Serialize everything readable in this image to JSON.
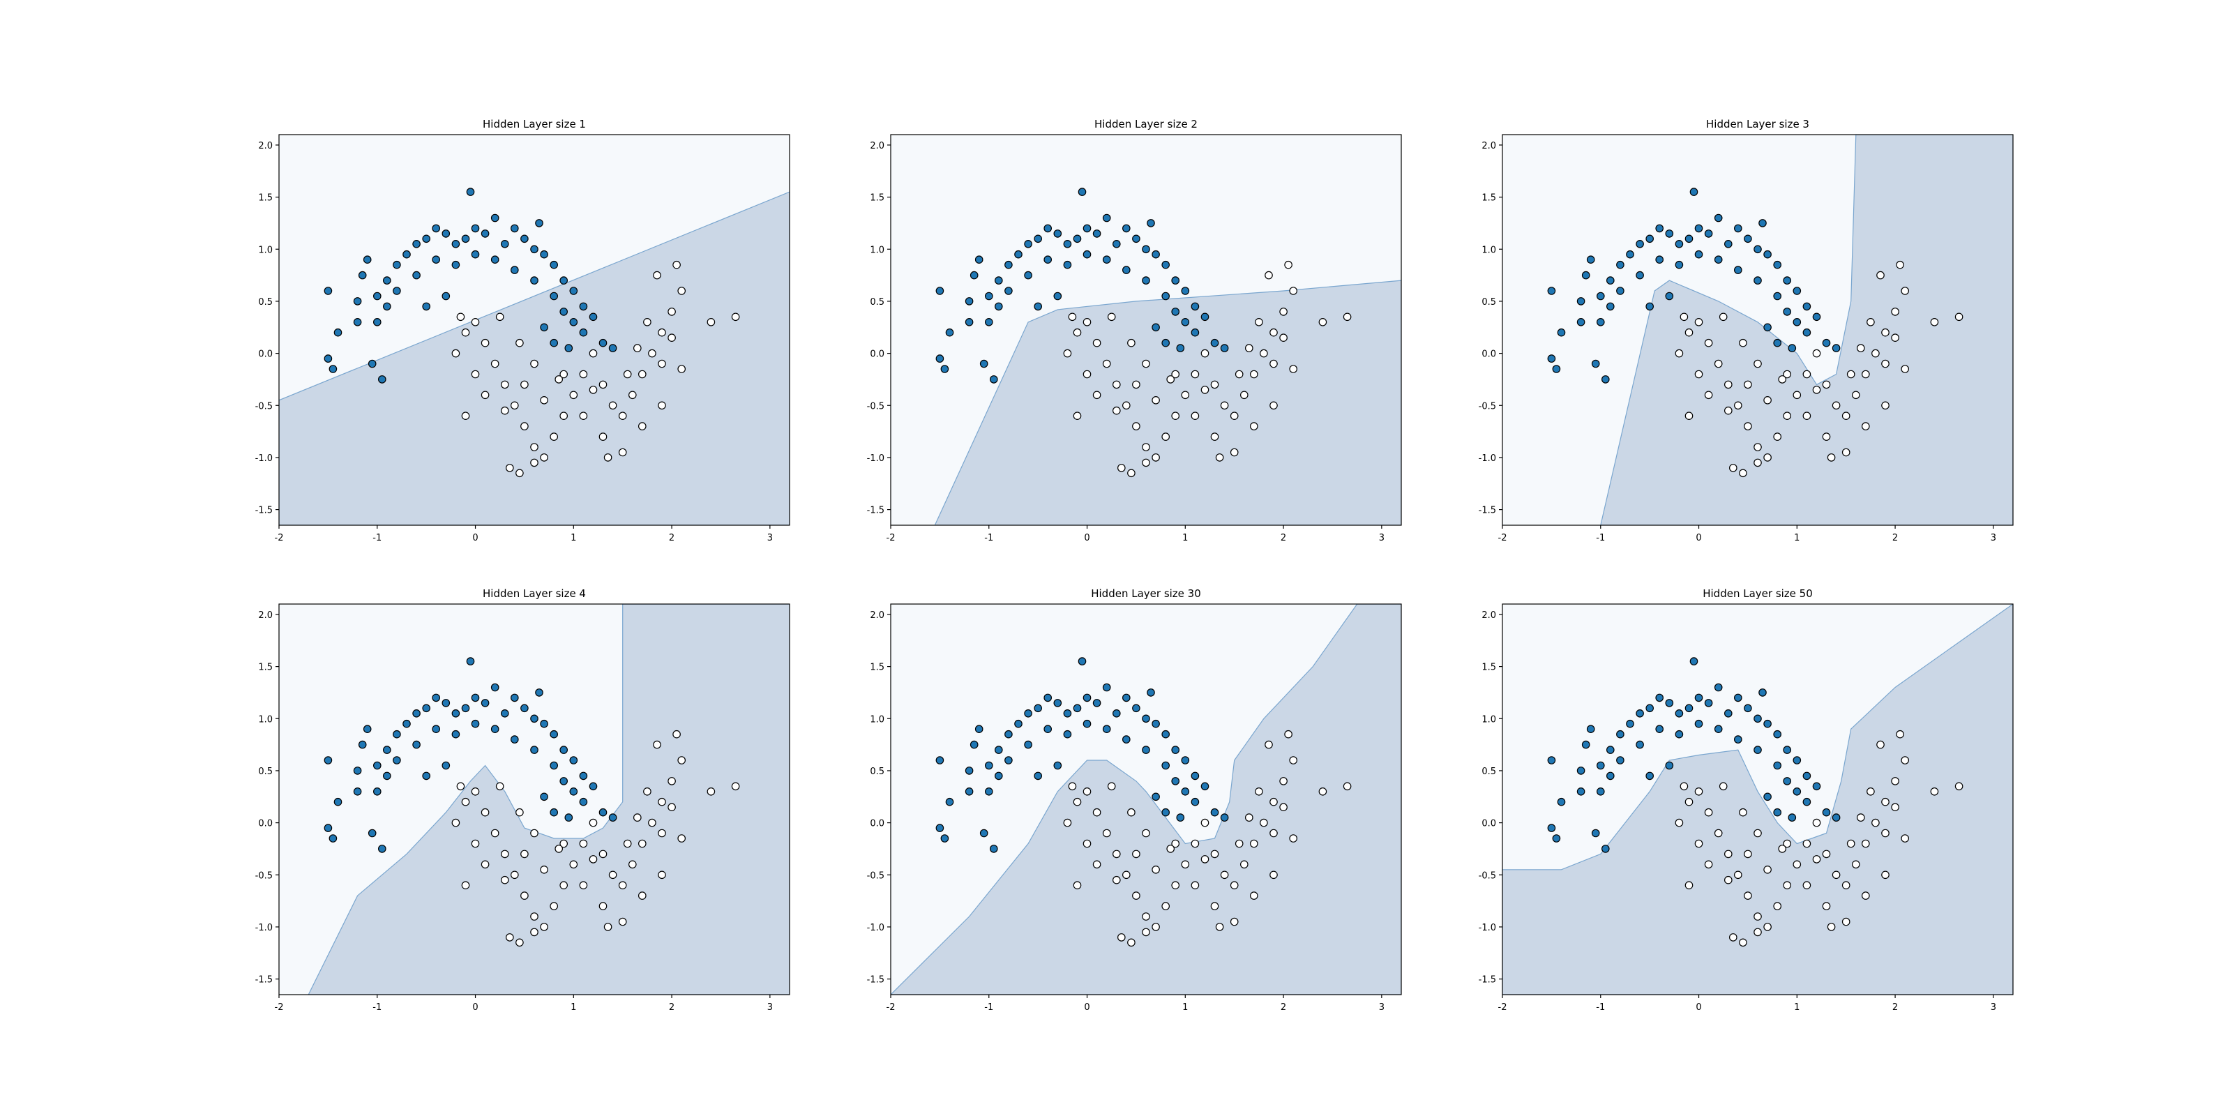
{
  "chart_data": [
    {
      "type": "scatter",
      "title": "Hidden Layer size 1",
      "xlim": [
        -2.0,
        3.2
      ],
      "ylim": [
        -1.65,
        2.1
      ],
      "xticks": [
        -2,
        -1,
        0,
        1,
        2,
        3
      ],
      "yticks": [
        -1.5,
        -1.0,
        -0.5,
        0.0,
        0.5,
        1.0,
        1.5,
        2.0
      ],
      "ytick_labels": [
        "-1.5",
        "-1.0",
        "-0.5",
        "0.0",
        "0.5",
        "1.0",
        "1.5",
        "2.0"
      ],
      "decision_region": [
        [
          -2.0,
          -1.65
        ],
        [
          -2.0,
          -0.45
        ],
        [
          3.2,
          1.55
        ],
        [
          3.2,
          -1.65
        ]
      ],
      "series": [
        {
          "color": "#1f77b4",
          "label_class": 0,
          "points": [
            [
              -1.5,
              0.6
            ],
            [
              -1.4,
              0.2
            ],
            [
              -1.5,
              -0.05
            ],
            [
              -1.45,
              -0.15
            ],
            [
              -1.2,
              0.5
            ],
            [
              -1.15,
              0.75
            ],
            [
              -1.1,
              0.9
            ],
            [
              -1.0,
              0.55
            ],
            [
              -0.9,
              0.7
            ],
            [
              -0.8,
              0.85
            ],
            [
              -0.7,
              0.95
            ],
            [
              -0.6,
              1.05
            ],
            [
              -0.5,
              1.1
            ],
            [
              -0.4,
              1.2
            ],
            [
              -0.3,
              1.15
            ],
            [
              -0.2,
              1.05
            ],
            [
              -0.1,
              1.1
            ],
            [
              0.0,
              1.2
            ],
            [
              0.1,
              1.15
            ],
            [
              0.2,
              1.3
            ],
            [
              0.3,
              1.05
            ],
            [
              0.4,
              1.2
            ],
            [
              0.5,
              1.1
            ],
            [
              0.6,
              1.0
            ],
            [
              0.7,
              0.95
            ],
            [
              0.8,
              0.85
            ],
            [
              0.9,
              0.7
            ],
            [
              1.0,
              0.6
            ],
            [
              1.1,
              0.45
            ],
            [
              1.2,
              0.35
            ],
            [
              -1.2,
              0.3
            ],
            [
              -1.0,
              0.3
            ],
            [
              -0.9,
              0.45
            ],
            [
              -0.8,
              0.6
            ],
            [
              -0.6,
              0.75
            ],
            [
              -0.4,
              0.9
            ],
            [
              -0.2,
              0.85
            ],
            [
              0.0,
              0.95
            ],
            [
              0.2,
              0.9
            ],
            [
              0.4,
              0.8
            ],
            [
              0.6,
              0.7
            ],
            [
              0.8,
              0.55
            ],
            [
              0.9,
              0.4
            ],
            [
              1.0,
              0.3
            ],
            [
              1.1,
              0.2
            ],
            [
              1.3,
              0.1
            ],
            [
              1.4,
              0.05
            ],
            [
              -0.05,
              1.55
            ],
            [
              0.65,
              1.25
            ],
            [
              -0.95,
              -0.25
            ],
            [
              -1.05,
              -0.1
            ],
            [
              0.8,
              0.1
            ],
            [
              0.7,
              0.25
            ],
            [
              0.95,
              0.05
            ],
            [
              -0.3,
              0.55
            ],
            [
              -0.5,
              0.45
            ]
          ]
        },
        {
          "color": "#ffffff",
          "label_class": 1,
          "points": [
            [
              0.0,
              0.3
            ],
            [
              0.1,
              0.1
            ],
            [
              0.2,
              -0.1
            ],
            [
              0.3,
              -0.3
            ],
            [
              0.4,
              -0.5
            ],
            [
              0.5,
              -0.7
            ],
            [
              0.6,
              -0.9
            ],
            [
              0.7,
              -1.0
            ],
            [
              0.8,
              -0.8
            ],
            [
              0.9,
              -0.6
            ],
            [
              1.0,
              -0.4
            ],
            [
              1.1,
              -0.2
            ],
            [
              1.2,
              0.0
            ],
            [
              1.3,
              -0.3
            ],
            [
              1.4,
              -0.5
            ],
            [
              1.5,
              -0.6
            ],
            [
              1.6,
              -0.4
            ],
            [
              1.7,
              -0.2
            ],
            [
              1.8,
              0.0
            ],
            [
              1.9,
              0.2
            ],
            [
              2.0,
              0.4
            ],
            [
              2.1,
              0.6
            ],
            [
              1.85,
              0.75
            ],
            [
              2.05,
              0.85
            ],
            [
              2.4,
              0.3
            ],
            [
              2.65,
              0.35
            ],
            [
              -0.1,
              0.2
            ],
            [
              -0.15,
              0.35
            ],
            [
              -0.2,
              0.0
            ],
            [
              0.0,
              -0.2
            ],
            [
              0.1,
              -0.4
            ],
            [
              0.3,
              -0.55
            ],
            [
              0.5,
              -0.3
            ],
            [
              0.7,
              -0.45
            ],
            [
              0.9,
              -0.2
            ],
            [
              1.1,
              -0.6
            ],
            [
              1.3,
              -0.8
            ],
            [
              1.5,
              -0.95
            ],
            [
              1.7,
              -0.7
            ],
            [
              1.9,
              -0.5
            ],
            [
              2.1,
              -0.15
            ],
            [
              -0.1,
              -0.6
            ],
            [
              0.35,
              -1.1
            ],
            [
              0.45,
              -1.15
            ],
            [
              0.6,
              -1.05
            ],
            [
              1.35,
              -1.0
            ],
            [
              1.55,
              -0.2
            ],
            [
              1.65,
              0.05
            ],
            [
              1.75,
              0.3
            ],
            [
              1.9,
              -0.1
            ],
            [
              2.0,
              0.15
            ],
            [
              0.25,
              0.35
            ],
            [
              0.45,
              0.1
            ],
            [
              0.6,
              -0.1
            ],
            [
              0.85,
              -0.25
            ],
            [
              1.2,
              -0.35
            ]
          ]
        }
      ]
    },
    {
      "type": "scatter",
      "title": "Hidden Layer size 2",
      "xlim": [
        -2.0,
        3.2
      ],
      "ylim": [
        -1.65,
        2.1
      ],
      "xticks": [
        -2,
        -1,
        0,
        1,
        2,
        3
      ],
      "yticks": [
        -1.5,
        -1.0,
        -0.5,
        0.0,
        0.5,
        1.0,
        1.5,
        2.0
      ],
      "ytick_labels": [
        "-1.5",
        "-1.0",
        "-0.5",
        "0.0",
        "0.5",
        "1.0",
        "1.5",
        "2.0"
      ],
      "decision_region": [
        [
          -1.55,
          -1.65
        ],
        [
          -0.6,
          0.3
        ],
        [
          -0.3,
          0.42
        ],
        [
          0.5,
          0.5
        ],
        [
          2.0,
          0.6
        ],
        [
          3.2,
          0.7
        ],
        [
          3.2,
          -1.65
        ]
      ],
      "series": "same_as_panel_1"
    },
    {
      "type": "scatter",
      "title": "Hidden Layer size 3",
      "xlim": [
        -2.0,
        3.2
      ],
      "ylim": [
        -1.65,
        2.1
      ],
      "xticks": [
        -2,
        -1,
        0,
        1,
        2,
        3
      ],
      "yticks": [
        -1.5,
        -1.0,
        -0.5,
        0.0,
        0.5,
        1.0,
        1.5,
        2.0
      ],
      "ytick_labels": [
        "-1.5",
        "-1.0",
        "-0.5",
        "0.0",
        "0.5",
        "1.0",
        "1.5",
        "2.0"
      ],
      "decision_region": [
        [
          -1.0,
          -1.65
        ],
        [
          -0.45,
          0.6
        ],
        [
          -0.3,
          0.7
        ],
        [
          0.2,
          0.5
        ],
        [
          0.6,
          0.3
        ],
        [
          1.0,
          0.0
        ],
        [
          1.2,
          -0.3
        ],
        [
          1.4,
          -0.2
        ],
        [
          1.55,
          0.5
        ],
        [
          1.6,
          2.1
        ],
        [
          3.2,
          2.1
        ],
        [
          3.2,
          -1.65
        ]
      ],
      "series": "same_as_panel_1"
    },
    {
      "type": "scatter",
      "title": "Hidden Layer size 4",
      "xlim": [
        -2.0,
        3.2
      ],
      "ylim": [
        -1.65,
        2.1
      ],
      "xticks": [
        -2,
        -1,
        0,
        1,
        2,
        3
      ],
      "yticks": [
        -1.5,
        -1.0,
        -0.5,
        0.0,
        0.5,
        1.0,
        1.5,
        2.0
      ],
      "ytick_labels": [
        "-1.5",
        "-1.0",
        "-0.5",
        "0.0",
        "0.5",
        "1.0",
        "1.5",
        "2.0"
      ],
      "decision_region": [
        [
          -1.7,
          -1.65
        ],
        [
          -1.2,
          -0.7
        ],
        [
          -0.7,
          -0.3
        ],
        [
          -0.3,
          0.1
        ],
        [
          -0.05,
          0.4
        ],
        [
          0.1,
          0.55
        ],
        [
          0.3,
          0.3
        ],
        [
          0.5,
          -0.05
        ],
        [
          0.8,
          -0.15
        ],
        [
          1.1,
          -0.15
        ],
        [
          1.3,
          -0.05
        ],
        [
          1.5,
          0.2
        ],
        [
          1.5,
          2.1
        ],
        [
          3.2,
          2.1
        ],
        [
          3.2,
          -1.65
        ]
      ],
      "series": "same_as_panel_1"
    },
    {
      "type": "scatter",
      "title": "Hidden Layer size 30",
      "xlim": [
        -2.0,
        3.2
      ],
      "ylim": [
        -1.65,
        2.1
      ],
      "xticks": [
        -2,
        -1,
        0,
        1,
        2,
        3
      ],
      "yticks": [
        -1.5,
        -1.0,
        -0.5,
        0.0,
        0.5,
        1.0,
        1.5,
        2.0
      ],
      "ytick_labels": [
        "-1.5",
        "-1.0",
        "-0.5",
        "0.0",
        "0.5",
        "1.0",
        "1.5",
        "2.0"
      ],
      "decision_region": [
        [
          -2.0,
          -1.65
        ],
        [
          -1.2,
          -0.9
        ],
        [
          -0.6,
          -0.2
        ],
        [
          -0.3,
          0.3
        ],
        [
          0.0,
          0.6
        ],
        [
          0.2,
          0.6
        ],
        [
          0.5,
          0.4
        ],
        [
          0.6,
          0.3
        ],
        [
          0.8,
          0.05
        ],
        [
          1.0,
          -0.2
        ],
        [
          1.3,
          -0.15
        ],
        [
          1.45,
          0.2
        ],
        [
          1.5,
          0.6
        ],
        [
          1.8,
          1.0
        ],
        [
          2.3,
          1.5
        ],
        [
          2.75,
          2.1
        ],
        [
          3.2,
          2.1
        ],
        [
          3.2,
          -1.65
        ]
      ],
      "series": "same_as_panel_1"
    },
    {
      "type": "scatter",
      "title": "Hidden Layer size 50",
      "xlim": [
        -2.0,
        3.2
      ],
      "ylim": [
        -1.65,
        2.1
      ],
      "xticks": [
        -2,
        -1,
        0,
        1,
        2,
        3
      ],
      "yticks": [
        -1.5,
        -1.0,
        -0.5,
        0.0,
        0.5,
        1.0,
        1.5,
        2.0
      ],
      "ytick_labels": [
        "-1.5",
        "-1.0",
        "-0.5",
        "0.0",
        "0.5",
        "1.0",
        "1.5",
        "2.0"
      ],
      "decision_region": [
        [
          -2.0,
          -1.65
        ],
        [
          -2.0,
          -0.45
        ],
        [
          -1.4,
          -0.45
        ],
        [
          -1.0,
          -0.3
        ],
        [
          -0.5,
          0.3
        ],
        [
          -0.3,
          0.6
        ],
        [
          0.0,
          0.65
        ],
        [
          0.4,
          0.7
        ],
        [
          0.6,
          0.3
        ],
        [
          0.8,
          0.0
        ],
        [
          1.0,
          -0.2
        ],
        [
          1.3,
          -0.1
        ],
        [
          1.45,
          0.4
        ],
        [
          1.55,
          0.9
        ],
        [
          2.0,
          1.3
        ],
        [
          2.6,
          1.7
        ],
        [
          3.2,
          2.1
        ],
        [
          3.2,
          -1.65
        ]
      ],
      "series": "same_as_panel_1"
    }
  ]
}
